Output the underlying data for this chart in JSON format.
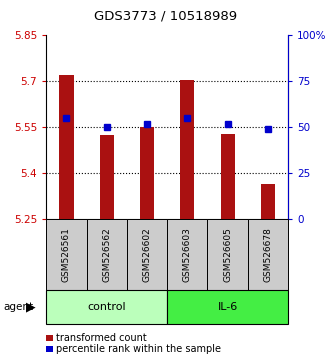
{
  "title": "GDS3773 / 10518989",
  "samples": [
    "GSM526561",
    "GSM526562",
    "GSM526602",
    "GSM526603",
    "GSM526605",
    "GSM526678"
  ],
  "bar_values": [
    5.72,
    5.525,
    5.55,
    5.705,
    5.53,
    5.365
  ],
  "percentile_values": [
    55,
    50,
    52,
    55,
    52,
    49
  ],
  "y_min": 5.25,
  "y_max": 5.85,
  "y_ticks_left": [
    5.25,
    5.4,
    5.55,
    5.7,
    5.85
  ],
  "y_ticks_right": [
    0,
    25,
    50,
    75,
    100
  ],
  "y_ticks_right_labels": [
    "0",
    "25",
    "50",
    "75",
    "100%"
  ],
  "bar_color": "#aa1111",
  "dot_color": "#0000cc",
  "groups": [
    {
      "label": "control",
      "indices": [
        0,
        1,
        2
      ],
      "color": "#bbffbb"
    },
    {
      "label": "IL-6",
      "indices": [
        3,
        4,
        5
      ],
      "color": "#44ee44"
    }
  ],
  "sample_box_color": "#cccccc",
  "legend_items": [
    {
      "label": "transformed count",
      "color": "#aa1111"
    },
    {
      "label": "percentile rank within the sample",
      "color": "#0000cc"
    }
  ],
  "left_axis_color": "#cc0000",
  "right_axis_color": "#0000cc",
  "grid_yticks": [
    5.4,
    5.55,
    5.7
  ],
  "bar_width": 0.35
}
